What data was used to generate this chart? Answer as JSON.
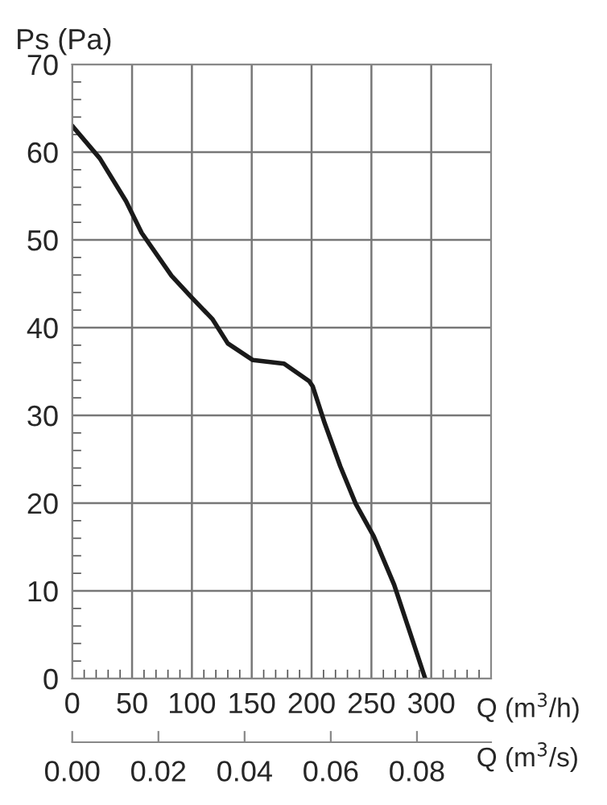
{
  "chart_data": {
    "type": "line",
    "xlabel": "Q (m$^{3}$/h)",
    "ylabel": "Ps (Pa)",
    "x2label": "Q (m$^{3}$/s)",
    "x": [
      0,
      23,
      45,
      58,
      83,
      100,
      117,
      130,
      151,
      177,
      198,
      201,
      211,
      224,
      237,
      252,
      269,
      295
    ],
    "series": [
      {
        "color": "#1a1a1a",
        "values": [
          63,
          59.3,
          54.4,
          50.8,
          45.9,
          43.4,
          41,
          38.2,
          36.3,
          35.9,
          33.9,
          33.3,
          29.1,
          24.2,
          19.9,
          16.2,
          10.7,
          0
        ]
      }
    ],
    "xlim": [
      0,
      350
    ],
    "xticks": [
      0,
      50,
      100,
      150,
      200,
      250,
      300
    ],
    "ylim": [
      0,
      70
    ],
    "yticks": [
      0,
      10,
      20,
      30,
      40,
      50,
      60,
      70
    ],
    "x2lim": [
      0,
      0.0972
    ],
    "x2ticks": [
      {
        "value": 0,
        "label": "0.00"
      },
      {
        "value": 0.02,
        "label": "0.02"
      },
      {
        "value": 0.04,
        "label": "0.04"
      },
      {
        "value": 0.06,
        "label": "0.06"
      },
      {
        "value": 0.08,
        "label": "0.08"
      }
    ],
    "grid": true
  }
}
